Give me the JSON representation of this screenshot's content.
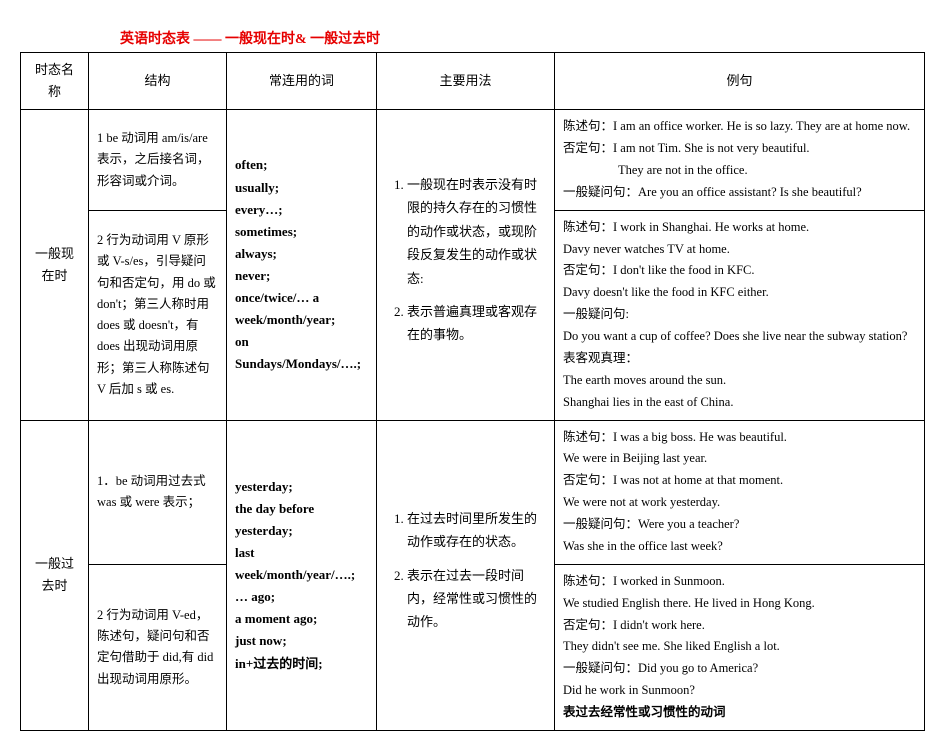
{
  "colors": {
    "title": "#e60000",
    "border": "#000000",
    "background": "#ffffff"
  },
  "typography": {
    "base_size_pt": 13,
    "title_size_pt": 14,
    "line_height": 1.7,
    "font_family": "SimSun"
  },
  "title": "英语时态表 —— 一般现在时& 一般过去时",
  "headers": {
    "name": "时态名称",
    "structure": "结构",
    "words": "常连用的词",
    "usage": "主要用法",
    "example": "例句"
  },
  "tense1": {
    "name": "一般现在时",
    "struct1": "1 be 动词用 am/is/are 表示，之后接名词，形容词或介词。",
    "struct2": "2 行为动词用 V 原形或 V-s/es，引导疑问句和否定句，用 do 或 don't；第三人称时用 does 或 doesn't，有 does 出现动词用原形；第三人称陈述句 V 后加 s 或 es.",
    "words": "often;\nusually;\nevery…;\nsometimes;\nalways;\nnever;\nonce/twice/… a week/month/year;\non Sundays/Mondays/….;",
    "usage1": "一般现在时表示没有时限的持久存在的习惯性的动作或状态，或现阶段反复发生的动作或状态:",
    "usage2": "表示普遍真理或客观存在的事物。",
    "ex1_l1a": "陈述句：",
    "ex1_l1b": "I am an office worker. He is so lazy. They are at home now.",
    "ex1_l2a": "否定句：",
    "ex1_l2b": "I am not Tim. She is not very beautiful.",
    "ex1_l3": "They are not in the office.",
    "ex1_l4a": "一般疑问句：",
    "ex1_l4b": "Are you an office assistant?   Is she beautiful?",
    "ex2_l1a": "陈述句：",
    "ex2_l1b": "I work in Shanghai.    He works at home.",
    "ex2_l2": "Davy never watches TV at home.",
    "ex2_l3a": "否定句：",
    "ex2_l3b": "I don't like the food in KFC.",
    "ex2_l4": "Davy doesn't like the food in KFC either.",
    "ex2_l5": "一般疑问句:",
    "ex2_l6": "Do you want a cup of coffee? Does she live near the subway station?",
    "ex2_l7": "表客观真理：",
    "ex2_l8": "The earth moves around the sun.",
    "ex2_l9": "Shanghai lies in the east of China."
  },
  "tense2": {
    "name": "一般过去时",
    "struct1": "1．be 动词用过去式 was 或 were 表示；",
    "struct2": "2 行为动词用 V-ed，陈述句，疑问句和否定句借助于 did,有 did 出现动词用原形。",
    "words": "yesterday;\nthe day before yesterday;\nlast week/month/year/….;\n… ago;\na moment ago;\njust now;\nin+过去的时间;",
    "usage1": "在过去时间里所发生的动作或存在的状态。",
    "usage2": "表示在过去一段时间内，经常性或习惯性的动作。",
    "ex1_l1a": "陈述句：",
    "ex1_l1b": "I was a big boss. He was beautiful.",
    "ex1_l2": "We were in Beijing last year.",
    "ex1_l3a": "否定句：",
    "ex1_l3b": "I was not at home at that moment.",
    "ex1_l4": "We were not at work yesterday.",
    "ex1_l5a": "一般疑问句：",
    "ex1_l5b": "Were you a teacher?",
    "ex1_l6": "Was she in the office last week?",
    "ex2_l1a": "陈述句：",
    "ex2_l1b": "I worked in Sunmoon.",
    "ex2_l2": "We studied English there. He lived in Hong Kong.",
    "ex2_l3a": "否定句：",
    "ex2_l3b": "I didn't work here.",
    "ex2_l4": "They didn't see me. She liked English a lot.",
    "ex2_l5a": "一般疑问句：",
    "ex2_l5b": "Did you go to America?",
    "ex2_l6": "Did he work in Sunmoon?",
    "ex2_l7": "表过去经常性或习惯性的动词"
  }
}
